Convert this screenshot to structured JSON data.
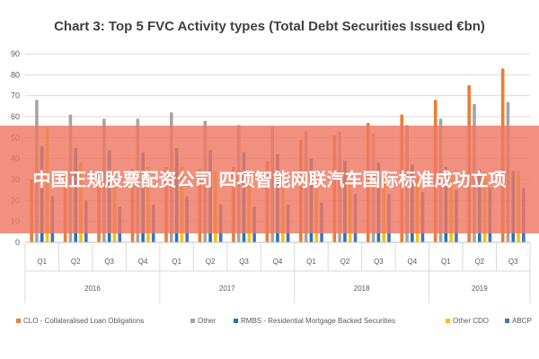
{
  "banner": {
    "text": "中国正规股票配资公司 四项智能网联汽车国际标准成功立项"
  },
  "colors": {
    "CLO": "#ED7D31",
    "Other": "#A5A5A5",
    "RMBS": "#1F77B4",
    "OtherCDO": "#FFC000",
    "ABCP": "#4472C4",
    "overlay": "#EE7862"
  },
  "chart_data": {
    "type": "bar",
    "title": "Chart 3: Top 5 FVC Activity types (Total Debt Securities Issued €bn)",
    "xlabel": "",
    "ylabel": "",
    "ylim": [
      0,
      90
    ],
    "yticks": [
      0,
      10,
      20,
      30,
      40,
      50,
      60,
      70,
      80,
      90
    ],
    "grid": true,
    "legend_position": "bottom",
    "categories": [
      "Q1",
      "Q2",
      "Q3",
      "Q4",
      "Q1",
      "Q2",
      "Q3",
      "Q4",
      "Q1",
      "Q2",
      "Q3",
      "Q4",
      "Q1",
      "Q2",
      "Q3"
    ],
    "years": [
      {
        "label": "2016",
        "count": 4
      },
      {
        "label": "2017",
        "count": 4
      },
      {
        "label": "2018",
        "count": 4
      },
      {
        "label": "2019",
        "count": 3
      }
    ],
    "series": [
      {
        "name": "CLO - Collateralised Loan Obligations",
        "key": "CLO",
        "values": [
          30,
          32,
          33,
          35,
          36,
          35,
          36,
          39,
          49,
          51,
          57,
          61,
          68,
          75,
          83
        ]
      },
      {
        "name": "Other",
        "key": "Other",
        "values": [
          68,
          61,
          59,
          59,
          62,
          58,
          56,
          55,
          53,
          53,
          52,
          56,
          59,
          66,
          67
        ]
      },
      {
        "name": "RMBS - Residential Mortgage Backed Securities",
        "key": "RMBS",
        "values": [
          46,
          45,
          44,
          43,
          45,
          44,
          43,
          42,
          40,
          39,
          38,
          37,
          36,
          35,
          34
        ]
      },
      {
        "name": "Other CDO",
        "key": "OtherCDO",
        "values": [
          55,
          38,
          35,
          36,
          36,
          34,
          33,
          33,
          31,
          31,
          30,
          31,
          33,
          34,
          34
        ]
      },
      {
        "name": "ABCP",
        "key": "ABCP",
        "values": [
          22,
          20,
          17,
          18,
          22,
          18,
          17,
          18,
          19,
          23,
          23,
          24,
          25,
          26,
          26
        ]
      }
    ]
  }
}
